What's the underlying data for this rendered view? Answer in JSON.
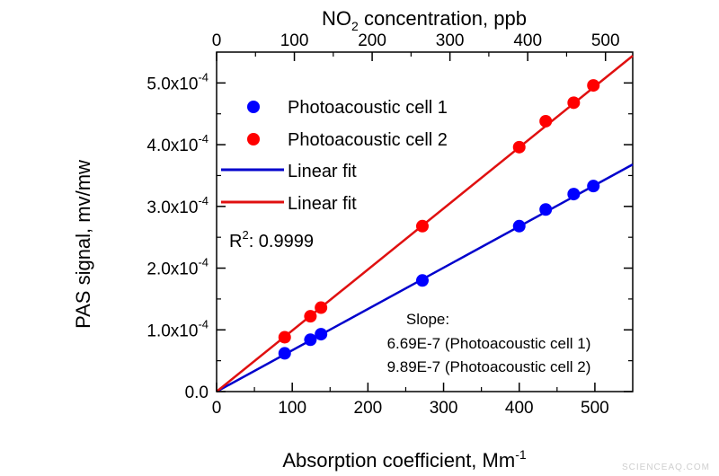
{
  "chart_data": {
    "type": "scatter",
    "x_title": {
      "main": "Absorption coefficient, Mm",
      "sup": "-1"
    },
    "x2_title": {
      "pre": "NO",
      "sub": "2",
      "post": " concentration, ppb"
    },
    "y_title": "PAS signal, mv/mw",
    "xlim": [
      0,
      550
    ],
    "x2lim": [
      0,
      535
    ],
    "ylim": [
      0,
      0.00055
    ],
    "x_ticks": [
      0,
      100,
      200,
      300,
      400,
      500
    ],
    "x2_ticks": [
      0,
      100,
      200,
      300,
      400,
      500
    ],
    "y_ticks": [
      {
        "value": 0,
        "base": "0.0",
        "exp": ""
      },
      {
        "value": 0.0001,
        "base": "1.0x10",
        "exp": "-4"
      },
      {
        "value": 0.0002,
        "base": "2.0x10",
        "exp": "-4"
      },
      {
        "value": 0.0003,
        "base": "3.0x10",
        "exp": "-4"
      },
      {
        "value": 0.0004,
        "base": "4.0x10",
        "exp": "-4"
      },
      {
        "value": 0.0005,
        "base": "5.0x10",
        "exp": "-4"
      }
    ],
    "series": [
      {
        "name": "Photoacoustic cell 1",
        "color": "#0000ff",
        "x": [
          90,
          124,
          138,
          272,
          400,
          435,
          472,
          498
        ],
        "y": [
          6.2e-05,
          8.4e-05,
          9.3e-05,
          0.00018,
          0.000268,
          0.000295,
          0.00032,
          0.000333
        ]
      },
      {
        "name": "Photoacoustic cell 2",
        "color": "#ff0000",
        "x": [
          90,
          124,
          138,
          272,
          400,
          435,
          472,
          498
        ],
        "y": [
          8.8e-05,
          0.000122,
          0.000136,
          0.000268,
          0.000396,
          0.000438,
          0.000468,
          0.000496
        ]
      }
    ],
    "fits": [
      {
        "name": "Linear fit",
        "color": "#0000cc",
        "slope": 6.69e-07
      },
      {
        "name": "Linear fit",
        "color": "#e01010",
        "slope": 9.89e-07
      }
    ],
    "r2": {
      "label": "R",
      "sup": "2",
      "value": ": 0.9999"
    },
    "slope_annotation": {
      "title": "Slope:",
      "line1": "6.69E-7 (Photoacoustic cell 1)",
      "line2": "9.89E-7 (Photoacoustic cell 2)"
    },
    "legend_position": "top-left",
    "grid": false
  },
  "watermark": "SCIENCEAQ.COM"
}
